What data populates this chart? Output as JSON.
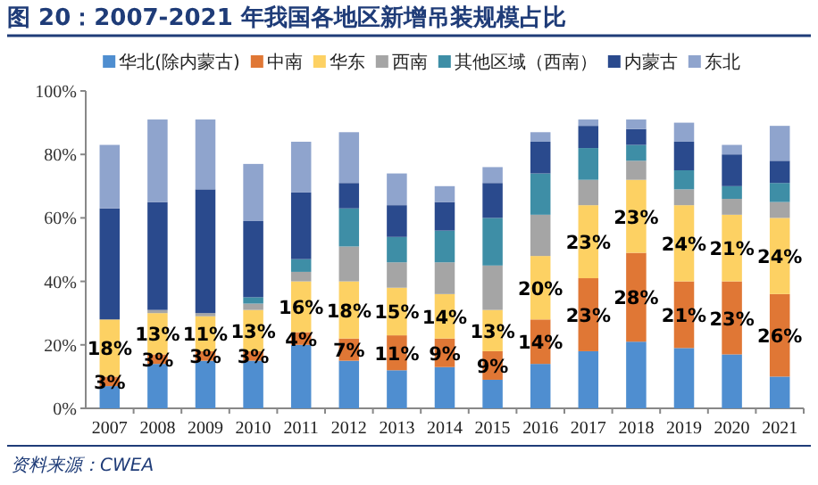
{
  "chart_data": {
    "type": "bar",
    "stacked": true,
    "title": "图 20：2007-2021 年我国各地区新增吊装规模占比",
    "annotations": [
      "资料来源：CWEA"
    ],
    "categories": [
      "2007",
      "2008",
      "2009",
      "2010",
      "2011",
      "2012",
      "2013",
      "2014",
      "2015",
      "2016",
      "2017",
      "2018",
      "2019",
      "2020",
      "2021"
    ],
    "ylim": [
      0,
      100
    ],
    "yticks": [
      {
        "value": 0,
        "label": "0%"
      },
      {
        "value": 20,
        "label": "20%"
      },
      {
        "value": 40,
        "label": "40%"
      },
      {
        "value": 60,
        "label": "60%"
      },
      {
        "value": 80,
        "label": "80%"
      },
      {
        "value": 100,
        "label": "100%"
      }
    ],
    "legend": "top",
    "grid": false,
    "series": [
      {
        "name": "华北(除内蒙古)",
        "color": "#4f8ed0",
        "values": [
          7,
          14,
          15,
          15,
          20,
          15,
          12,
          13,
          9,
          14,
          18,
          21,
          19,
          17,
          10
        ]
      },
      {
        "name": "中南",
        "color": "#e07735",
        "values": [
          3,
          3,
          3,
          3,
          4,
          7,
          11,
          9,
          9,
          14,
          23,
          28,
          21,
          23,
          26
        ],
        "value_labels": [
          "3%",
          "3%",
          "3%",
          "3%",
          "4%",
          "7%",
          "11%",
          "9%",
          "9%",
          "14%",
          "23%",
          "28%",
          "21%",
          "23%",
          "26%"
        ]
      },
      {
        "name": "华东",
        "color": "#fdd163",
        "values": [
          18,
          13,
          11,
          13,
          16,
          18,
          15,
          14,
          13,
          20,
          23,
          23,
          24,
          21,
          24
        ],
        "value_labels": [
          "18%",
          "13%",
          "11%",
          "13%",
          "16%",
          "18%",
          "15%",
          "14%",
          "13%",
          "20%",
          "23%",
          "23%",
          "24%",
          "21%",
          "24%"
        ]
      },
      {
        "name": "西南",
        "color": "#a5a5a5",
        "values": [
          0,
          1,
          1,
          2,
          3,
          11,
          8,
          10,
          14,
          13,
          8,
          6,
          5,
          5,
          5
        ]
      },
      {
        "name": "其他区域（西南）",
        "color": "#3e8ea6",
        "values": [
          0,
          0,
          0,
          2,
          4,
          12,
          8,
          10,
          15,
          13,
          10,
          5,
          6,
          4,
          6
        ]
      },
      {
        "name": "内蒙古",
        "color": "#2a4a8d",
        "values": [
          35,
          34,
          39,
          24,
          21,
          8,
          10,
          9,
          11,
          10,
          7,
          5,
          9,
          10,
          7
        ]
      },
      {
        "name": "东北",
        "color": "#8fa4cd",
        "values": [
          20,
          26,
          22,
          18,
          16,
          16,
          10,
          5,
          5,
          3,
          2,
          3,
          6,
          3,
          11
        ]
      }
    ]
  }
}
